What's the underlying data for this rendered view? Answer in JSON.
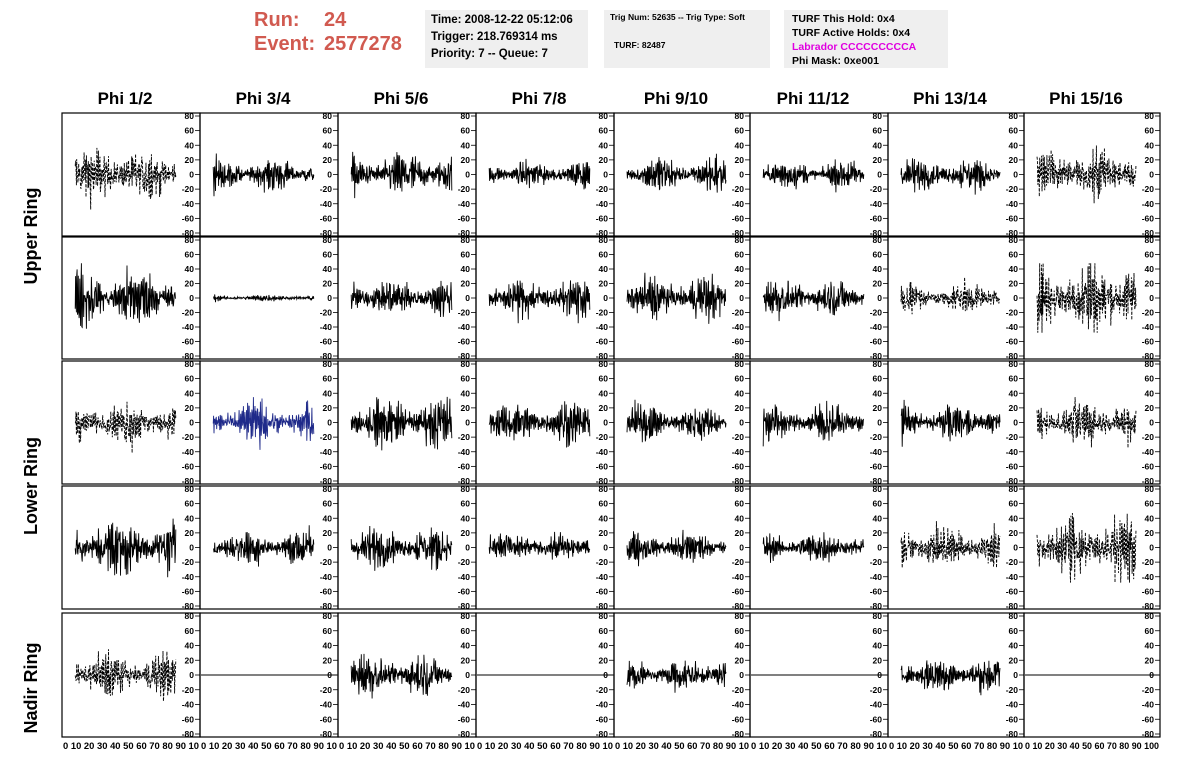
{
  "header": {
    "run_label": "Run:",
    "run_value": "24",
    "event_label": "Event:",
    "event_value": "2577278",
    "time": "Time: 2008-12-22 05:12:06",
    "trigger": "Trigger: 218.769314 ms",
    "priority": "Priority: 7 -- Queue: 7",
    "trig_num": "Trig Num: 52635 -- Trig Type: Soft",
    "turf": "TURF: 82487",
    "turf_this_hold": "TURF This Hold: 0x4",
    "turf_active_holds": "TURF Active Holds: 0x4",
    "labrador": "Labrador CCCCCCCCCA",
    "phi_mask": "Phi Mask: 0xe001"
  },
  "colors": {
    "run_text": "#d15a50",
    "labrador_text": "#e000e0",
    "panel_bg": "#efefef",
    "highlight_trace": "#1f2a8a",
    "trace": "#000000"
  },
  "chart_data": {
    "type": "line",
    "description_of_grid": "5x8 grid of waveform panels",
    "columns": [
      "Phi 1/2",
      "Phi 3/4",
      "Phi 5/6",
      "Phi 7/8",
      "Phi 9/10",
      "Phi 11/12",
      "Phi 13/14",
      "Phi 15/16"
    ],
    "row_labels": [
      "Upper Ring",
      "Lower Ring",
      "Nadir Ring"
    ],
    "ylim": [
      -80,
      80
    ],
    "xlim": [
      0,
      100
    ],
    "yticks": [
      80,
      60,
      40,
      20,
      0,
      -20,
      -40,
      -60,
      -80
    ],
    "xticks": [
      0,
      10,
      20,
      30,
      40,
      50,
      60,
      70,
      80,
      90,
      100
    ],
    "xtick_labels_compact": [
      "0 10 20 30 40 50 60 70 80 90 10",
      "0 10 20 30 40 50 60 70 80 90 10",
      "0 10 20 30 40 50 60 70 80 90 10",
      "0 10 20 30 40 50 60 70 80 90 10",
      "0 10 20 30 40 50 60 70 80 90 10",
      "0 10 20 30 40 50 60 70 80 90 10",
      "0 10 20 30 40 50 60 70 80 90 10",
      "0 10 20 30 40 50 60 70 80 90 100"
    ],
    "panels": [
      [
        {
          "style": "dashed",
          "amp": 28
        },
        {
          "style": "solid",
          "amp": 16
        },
        {
          "style": "solid",
          "amp": 20
        },
        {
          "style": "solid",
          "amp": 14
        },
        {
          "style": "solid",
          "amp": 18
        },
        {
          "style": "solid",
          "amp": 14
        },
        {
          "style": "solid",
          "amp": 16
        },
        {
          "style": "dashed",
          "amp": 28
        }
      ],
      [
        {
          "style": "solid",
          "amp": 28
        },
        {
          "style": "solid",
          "amp": 3
        },
        {
          "style": "solid",
          "amp": 20
        },
        {
          "style": "solid",
          "amp": 20
        },
        {
          "style": "solid",
          "amp": 22
        },
        {
          "style": "solid",
          "amp": 18
        },
        {
          "style": "dashed",
          "amp": 16
        },
        {
          "style": "dashed",
          "amp": 40
        }
      ],
      [
        {
          "style": "dashed",
          "amp": 22
        },
        {
          "style": "solid",
          "amp": 20,
          "highlight": true
        },
        {
          "style": "solid",
          "amp": 24
        },
        {
          "style": "solid",
          "amp": 20
        },
        {
          "style": "solid",
          "amp": 18
        },
        {
          "style": "solid",
          "amp": 18
        },
        {
          "style": "solid",
          "amp": 18
        },
        {
          "style": "dashed",
          "amp": 22
        }
      ],
      [
        {
          "style": "solid",
          "amp": 28
        },
        {
          "style": "solid",
          "amp": 18
        },
        {
          "style": "solid",
          "amp": 20
        },
        {
          "style": "solid",
          "amp": 16
        },
        {
          "style": "solid",
          "amp": 16
        },
        {
          "style": "solid",
          "amp": 14
        },
        {
          "style": "dashed",
          "amp": 22
        },
        {
          "style": "dashed",
          "amp": 34
        }
      ],
      [
        {
          "style": "dashed",
          "amp": 22
        },
        {
          "style": "flat",
          "amp": 0
        },
        {
          "style": "solid",
          "amp": 20
        },
        {
          "style": "flat",
          "amp": 0
        },
        {
          "style": "solid",
          "amp": 16
        },
        {
          "style": "flat",
          "amp": 0
        },
        {
          "style": "solid",
          "amp": 18
        },
        {
          "style": "flat",
          "amp": 0
        }
      ]
    ]
  }
}
